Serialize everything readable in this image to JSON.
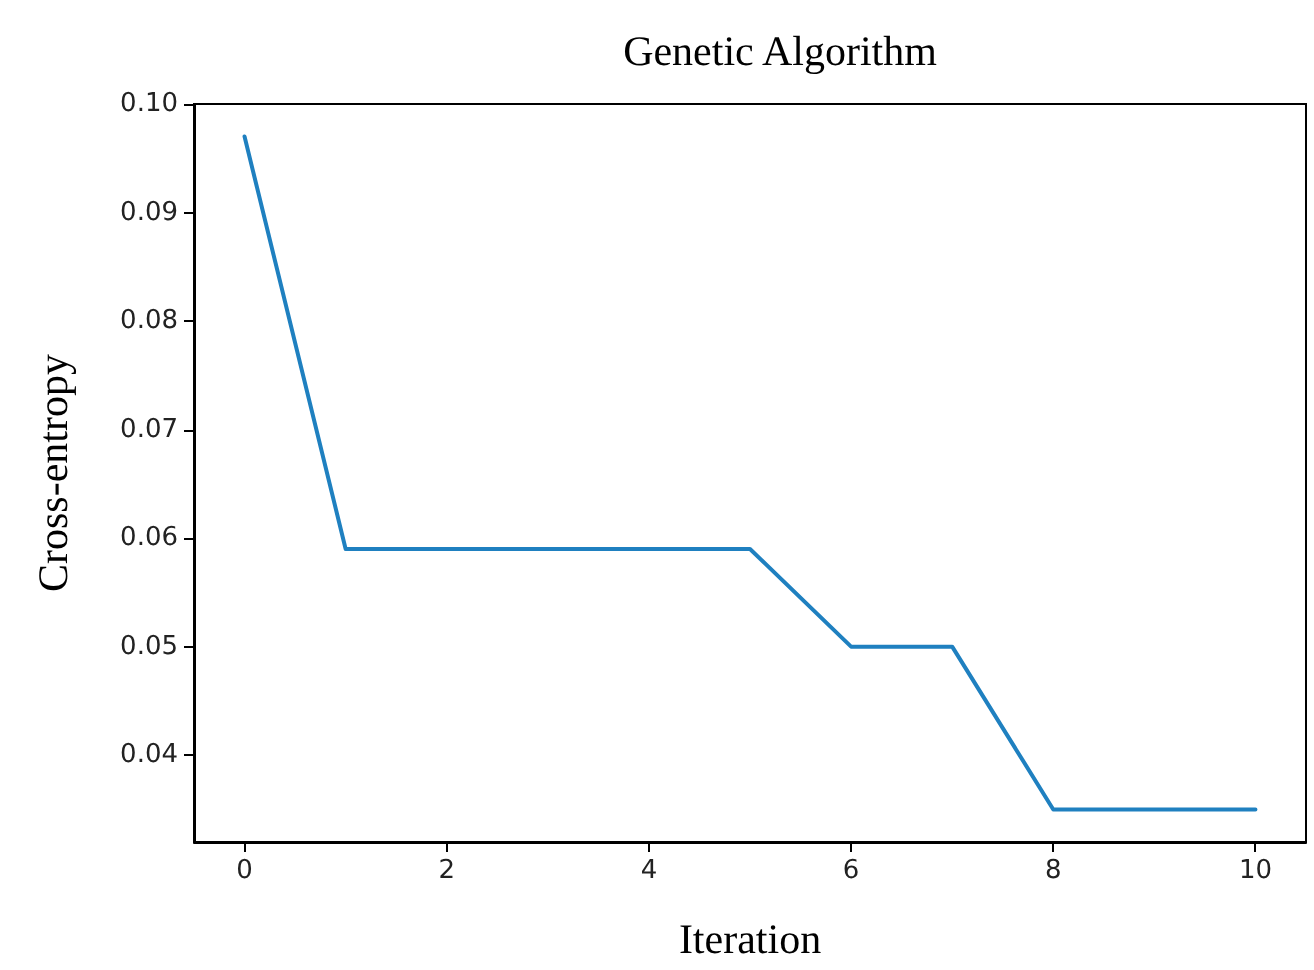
{
  "chart_data": {
    "type": "line",
    "title": "Genetic Algorithm",
    "xlabel": "Iteration",
    "ylabel": "Cross-entropy",
    "x": [
      0,
      1,
      2,
      3,
      4,
      5,
      6,
      7,
      8,
      9,
      10
    ],
    "series": [
      {
        "color": "#1f80c0",
        "values": [
          0.097,
          0.059,
          0.059,
          0.059,
          0.059,
          0.059,
          0.05,
          0.05,
          0.035,
          0.035,
          0.035
        ]
      }
    ],
    "xlim": [
      -0.5,
      10.5
    ],
    "xticks": [
      0,
      2,
      4,
      6,
      8,
      10
    ],
    "ylim": [
      0.032,
      0.1
    ],
    "yticks": [
      {
        "value": 0.04,
        "label": "0.04"
      },
      {
        "value": 0.05,
        "label": "0.05"
      },
      {
        "value": 0.06,
        "label": "0.06"
      },
      {
        "value": 0.07,
        "label": "0.07"
      },
      {
        "value": 0.08,
        "label": "0.08"
      },
      {
        "value": 0.09,
        "label": "0.09"
      },
      {
        "value": 0.1,
        "label": "0.10"
      }
    ],
    "grid": false,
    "marker": "none",
    "line_style": "solid"
  }
}
